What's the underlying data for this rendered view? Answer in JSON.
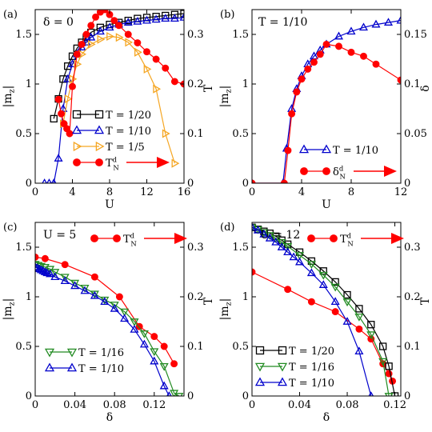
{
  "chart_data": [
    {
      "type": "line",
      "panel_label": "(a)",
      "annotation": "δ = 0",
      "xlabel": "U",
      "ylabel_left": "|m_z|",
      "ylabel_right": "T",
      "xlim": [
        0,
        16
      ],
      "ylim_left": [
        0,
        1.75
      ],
      "ylim_right": [
        0,
        0.35
      ],
      "xticks": [
        0,
        4,
        8,
        12,
        16
      ],
      "xtick_labels": [
        "0",
        "4",
        "8",
        "12",
        "16"
      ],
      "yticks_left": [
        0,
        0.5,
        1,
        1.5
      ],
      "ytick_labels_left": [
        "0",
        "0.5",
        "1",
        "1.5"
      ],
      "yticks_right": [
        0,
        0.1,
        0.2,
        0.3
      ],
      "ytick_labels_right": [
        "0",
        "0.1",
        "0.2",
        "0.3"
      ],
      "legend_position": "bottom-center",
      "series": [
        {
          "name": "T = 1/20",
          "marker": "square",
          "color": "#000000",
          "axis": "left",
          "x": [
            2,
            2.5,
            3,
            3.5,
            4,
            4.5,
            5,
            5.5,
            6,
            7,
            8,
            9,
            10,
            11,
            12,
            13,
            14,
            15,
            16
          ],
          "y": [
            0.65,
            0.85,
            1.05,
            1.18,
            1.28,
            1.36,
            1.42,
            1.47,
            1.52,
            1.57,
            1.6,
            1.62,
            1.64,
            1.66,
            1.67,
            1.68,
            1.69,
            1.7,
            1.71
          ]
        },
        {
          "name": "T = 1/10",
          "marker": "triangle-up",
          "color": "#0000cc",
          "axis": "left",
          "x": [
            1,
            1.5,
            2,
            2.5,
            3,
            3.5,
            4,
            4.5,
            5,
            5.5,
            6,
            7,
            8,
            9,
            10,
            11,
            12,
            13,
            14,
            15,
            16
          ],
          "y": [
            0,
            0,
            0,
            0.25,
            0.75,
            1.05,
            1.2,
            1.3,
            1.37,
            1.42,
            1.47,
            1.53,
            1.57,
            1.6,
            1.62,
            1.63,
            1.64,
            1.65,
            1.66,
            1.66,
            1.67
          ]
        },
        {
          "name": "T = 1/5",
          "marker": "triangle-right",
          "color": "#f5a623",
          "axis": "left",
          "x": [
            3,
            3.5,
            4,
            4.5,
            5,
            6,
            7,
            8,
            9,
            10,
            11,
            12,
            13,
            14,
            15
          ],
          "y": [
            0.6,
            0.85,
            1.05,
            1.2,
            1.3,
            1.4,
            1.45,
            1.48,
            1.47,
            1.42,
            1.32,
            1.15,
            0.95,
            0.5,
            0.2
          ]
        },
        {
          "name": "T_N^d",
          "marker": "circle",
          "color": "#ff0000",
          "axis": "right",
          "x": [
            2.5,
            2.8,
            3.1,
            3.4,
            3.7,
            4,
            4.5,
            5,
            5.5,
            6,
            6.5,
            7,
            7.5,
            8,
            8.5,
            9,
            10,
            11,
            12,
            13,
            14,
            15,
            16
          ],
          "y": [
            0.169,
            0.14,
            0.12,
            0.11,
            0.1,
            0.195,
            0.26,
            0.28,
            0.3,
            0.318,
            0.335,
            0.345,
            0.35,
            0.34,
            0.328,
            0.318,
            0.3,
            0.283,
            0.265,
            0.25,
            0.232,
            0.205,
            0.2
          ]
        }
      ]
    },
    {
      "type": "line",
      "panel_label": "(b)",
      "annotation": "T = 1/10",
      "xlabel": "U",
      "ylabel_left": "|m_z|",
      "ylabel_right": "δ",
      "xlim": [
        0,
        12
      ],
      "ylim_left": [
        0,
        1.75
      ],
      "ylim_right": [
        0,
        0.175
      ],
      "xticks": [
        0,
        4,
        8,
        12
      ],
      "xtick_labels": [
        "0",
        "4",
        "8",
        "12"
      ],
      "yticks_left": [
        0,
        0.5,
        1,
        1.5
      ],
      "ytick_labels_left": [
        "0",
        "0.5",
        "1",
        "1.5"
      ],
      "yticks_right": [
        0,
        0.05,
        0.1,
        0.15
      ],
      "ytick_labels_right": [
        "0",
        "0.05",
        "0.1",
        "0.15"
      ],
      "legend_position": "bottom-right",
      "series": [
        {
          "name": "T = 1/10",
          "marker": "triangle-up",
          "color": "#0000cc",
          "axis": "left",
          "x": [
            0,
            2.5,
            2.8,
            3.2,
            3.6,
            4,
            4.5,
            5,
            5.5,
            6,
            7,
            8,
            9,
            10,
            11,
            12
          ],
          "y": [
            0,
            0,
            0.35,
            0.75,
            0.95,
            1.08,
            1.2,
            1.28,
            1.34,
            1.4,
            1.48,
            1.53,
            1.57,
            1.6,
            1.62,
            1.64
          ]
        },
        {
          "name": "δ_N^d",
          "marker": "circle",
          "color": "#ff0000",
          "axis": "right",
          "x": [
            0,
            2.6,
            2.9,
            3.2,
            3.6,
            4,
            4.5,
            5,
            5.5,
            6,
            7,
            8,
            9,
            10,
            12
          ],
          "y": [
            0,
            0,
            0.033,
            0.07,
            0.092,
            0.105,
            0.115,
            0.122,
            0.13,
            0.14,
            0.138,
            0.132,
            0.128,
            0.12,
            0.104
          ]
        }
      ]
    },
    {
      "type": "line",
      "panel_label": "(c)",
      "annotation": "U = 5",
      "xlabel": "δ",
      "ylabel_left": "|m_z|",
      "ylabel_right": "T",
      "xlim": [
        0,
        0.15
      ],
      "ylim_left": [
        0,
        1.75
      ],
      "ylim_right": [
        0,
        0.35
      ],
      "xticks": [
        0,
        0.04,
        0.08,
        0.12
      ],
      "xtick_labels": [
        "0",
        "0.04",
        "0.08",
        "0.12"
      ],
      "yticks_left": [
        0,
        0.5,
        1,
        1.5
      ],
      "ytick_labels_left": [
        "0",
        "0.5",
        "1",
        "1.5"
      ],
      "yticks_right": [
        0,
        0.1,
        0.2,
        0.3
      ],
      "ytick_labels_right": [
        "0",
        "0.1",
        "0.2",
        "0.3"
      ],
      "legend_position": "bottom-left",
      "series": [
        {
          "name": "T_N^d",
          "marker": "circle",
          "color": "#ff0000",
          "axis": "right",
          "x": [
            0,
            0.01,
            0.03,
            0.06,
            0.085,
            0.105,
            0.12,
            0.13,
            0.14
          ],
          "y": [
            0.28,
            0.277,
            0.265,
            0.24,
            0.2,
            0.14,
            0.12,
            0.1,
            0.065
          ]
        },
        {
          "name": "T = 1/16",
          "marker": "triangle-down",
          "color": "#228b22",
          "axis": "left",
          "x": [
            0,
            0.003,
            0.006,
            0.01,
            0.015,
            0.02,
            0.03,
            0.04,
            0.05,
            0.06,
            0.07,
            0.08,
            0.09,
            0.1,
            0.11,
            0.12,
            0.13,
            0.14,
            0.145
          ],
          "y": [
            1.33,
            1.32,
            1.31,
            1.3,
            1.28,
            1.25,
            1.2,
            1.14,
            1.09,
            1.03,
            0.97,
            0.92,
            0.85,
            0.75,
            0.63,
            0.45,
            0.3,
            0.03,
            0.0
          ]
        },
        {
          "name": "T = 1/10",
          "marker": "triangle-up",
          "color": "#0000cc",
          "axis": "left",
          "x": [
            0,
            0.002,
            0.004,
            0.006,
            0.008,
            0.01,
            0.012,
            0.015,
            0.02,
            0.03,
            0.04,
            0.05,
            0.06,
            0.07,
            0.08,
            0.09,
            0.1,
            0.11,
            0.12,
            0.13,
            0.135
          ],
          "y": [
            1.3,
            1.29,
            1.28,
            1.27,
            1.26,
            1.25,
            1.24,
            1.23,
            1.2,
            1.16,
            1.11,
            1.06,
            1.01,
            0.95,
            0.88,
            0.78,
            0.67,
            0.52,
            0.35,
            0.1,
            0.0
          ]
        }
      ]
    },
    {
      "type": "line",
      "panel_label": "(d)",
      "annotation": "U = 12",
      "xlabel": "δ",
      "ylabel_left": "|m_z|",
      "ylabel_right": "T",
      "xlim": [
        0,
        0.125
      ],
      "ylim_left": [
        0,
        1.75
      ],
      "ylim_right": [
        0,
        0.35
      ],
      "xticks": [
        0,
        0.04,
        0.08,
        0.12
      ],
      "xtick_labels": [
        "0",
        "0.04",
        "0.08",
        "0.12"
      ],
      "yticks_left": [
        0,
        0.5,
        1,
        1.5
      ],
      "ytick_labels_left": [
        "0",
        "0.5",
        "1",
        "1.5"
      ],
      "yticks_right": [
        0,
        0.1,
        0.2,
        0.3
      ],
      "ytick_labels_right": [
        "0",
        "0.1",
        "0.2",
        "0.3"
      ],
      "legend_position": "bottom-left",
      "series": [
        {
          "name": "T_N^d",
          "marker": "circle",
          "color": "#ff0000",
          "axis": "right",
          "x": [
            0,
            0.03,
            0.05,
            0.07,
            0.09,
            0.1,
            0.11,
            0.115,
            0.118
          ],
          "y": [
            0.25,
            0.215,
            0.19,
            0.17,
            0.135,
            0.115,
            0.065,
            0.045,
            0.03
          ]
        },
        {
          "name": "T = 1/20",
          "marker": "square",
          "color": "#000000",
          "axis": "left",
          "x": [
            0,
            0.005,
            0.01,
            0.015,
            0.02,
            0.025,
            0.03,
            0.04,
            0.05,
            0.06,
            0.07,
            0.08,
            0.09,
            0.1,
            0.11,
            0.115,
            0.12
          ],
          "y": [
            1.7,
            1.68,
            1.66,
            1.64,
            1.61,
            1.57,
            1.53,
            1.45,
            1.36,
            1.26,
            1.15,
            1.02,
            0.88,
            0.72,
            0.5,
            0.3,
            0.0
          ]
        },
        {
          "name": "T = 1/16",
          "marker": "triangle-down",
          "color": "#228b22",
          "axis": "left",
          "x": [
            0,
            0.005,
            0.01,
            0.015,
            0.02,
            0.025,
            0.03,
            0.04,
            0.05,
            0.06,
            0.07,
            0.08,
            0.09,
            0.1,
            0.11,
            0.115
          ],
          "y": [
            1.7,
            1.68,
            1.65,
            1.62,
            1.59,
            1.55,
            1.51,
            1.42,
            1.33,
            1.22,
            1.1,
            0.95,
            0.8,
            0.62,
            0.35,
            0.0
          ]
        },
        {
          "name": "T = 1/10",
          "marker": "triangle-up",
          "color": "#0000cc",
          "axis": "left",
          "x": [
            0,
            0.005,
            0.01,
            0.015,
            0.02,
            0.025,
            0.03,
            0.035,
            0.04,
            0.05,
            0.06,
            0.07,
            0.08,
            0.09,
            0.1
          ],
          "y": [
            1.7,
            1.67,
            1.63,
            1.59,
            1.55,
            1.5,
            1.45,
            1.4,
            1.35,
            1.24,
            1.12,
            0.95,
            0.75,
            0.45,
            0.0
          ]
        }
      ]
    }
  ]
}
